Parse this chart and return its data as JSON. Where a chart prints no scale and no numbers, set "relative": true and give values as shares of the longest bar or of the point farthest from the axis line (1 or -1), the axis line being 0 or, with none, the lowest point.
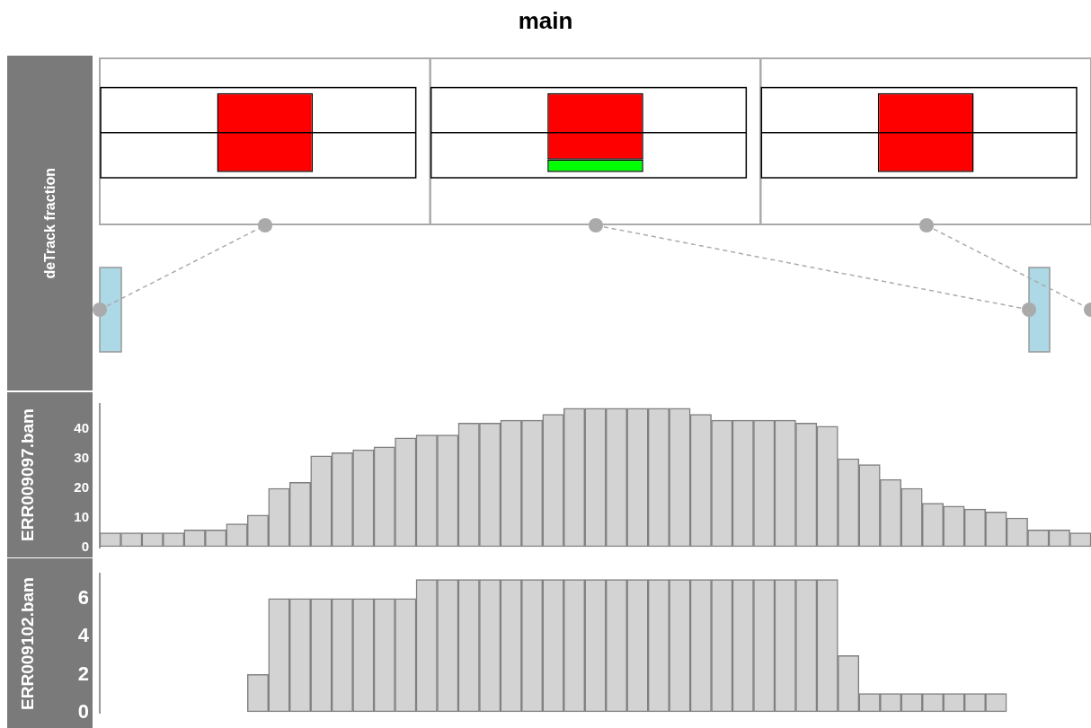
{
  "chart_data": [
    {
      "type": "bar",
      "title": "main",
      "ylabel": "deTrack fraction",
      "relative": true,
      "ref_lines": [
        {
          "axis": "y",
          "value": 0.5,
          "color": "#000000"
        }
      ],
      "stacked": true,
      "tick_labels": false,
      "legend": false,
      "categories": [
        null,
        null,
        null
      ],
      "series": [
        {
          "color": "#00ff00",
          "values": [
            0,
            0.16,
            0
          ]
        },
        {
          "color": "#ff0000",
          "values": [
            1,
            0.84,
            1
          ]
        }
      ]
    },
    {
      "type": "bar",
      "ylabel": "ERR009097.bam",
      "tick_labels": "y",
      "legend": false,
      "color": "#d3d3d3",
      "ylim": [
        0,
        48.5
      ],
      "yticks": [
        0,
        10,
        20,
        30,
        40
      ],
      "categories": [
        null,
        null,
        null,
        null,
        null,
        null,
        null,
        null,
        null,
        null,
        null,
        null,
        null,
        null,
        null,
        null,
        null,
        null,
        null,
        null,
        null,
        null,
        null,
        null,
        null,
        null,
        null,
        null,
        null,
        null,
        null,
        null,
        null,
        null,
        null,
        null,
        null,
        null,
        null,
        null,
        null,
        null,
        null,
        null,
        null,
        null,
        null
      ],
      "values": [
        5,
        5,
        5,
        5,
        6,
        6,
        8,
        11,
        20,
        22,
        31,
        32,
        33,
        34,
        37,
        38,
        38,
        42,
        42,
        43,
        43,
        45,
        47,
        47,
        47,
        47,
        47,
        47,
        45,
        43,
        43,
        43,
        43,
        42,
        41,
        30,
        28,
        23,
        20,
        15,
        14,
        13,
        12,
        10,
        6,
        6,
        5
      ]
    },
    {
      "type": "bar",
      "ylabel": "ERR009102.bam",
      "tick_labels": "y",
      "legend": false,
      "color": "#d3d3d3",
      "ylim": [
        0,
        7.3
      ],
      "yticks": [
        0,
        2,
        4,
        6
      ],
      "categories": [
        null,
        null,
        null,
        null,
        null,
        null,
        null,
        null,
        null,
        null,
        null,
        null,
        null,
        null,
        null,
        null,
        null,
        null,
        null,
        null,
        null,
        null,
        null,
        null,
        null,
        null,
        null,
        null,
        null,
        null,
        null,
        null,
        null,
        null,
        null,
        null,
        null,
        null,
        null,
        null,
        null,
        null,
        null,
        null,
        null,
        null,
        null
      ],
      "values": [
        0,
        0,
        0,
        0,
        0,
        0,
        0,
        2,
        6,
        6,
        6,
        6,
        6,
        6,
        6,
        7,
        7,
        7,
        7,
        7,
        7,
        7,
        7,
        7,
        7,
        7,
        7,
        7,
        7,
        7,
        7,
        7,
        7,
        7,
        7,
        3,
        1,
        1,
        1,
        1,
        1,
        1,
        1,
        0,
        0,
        0,
        0
      ]
    }
  ]
}
